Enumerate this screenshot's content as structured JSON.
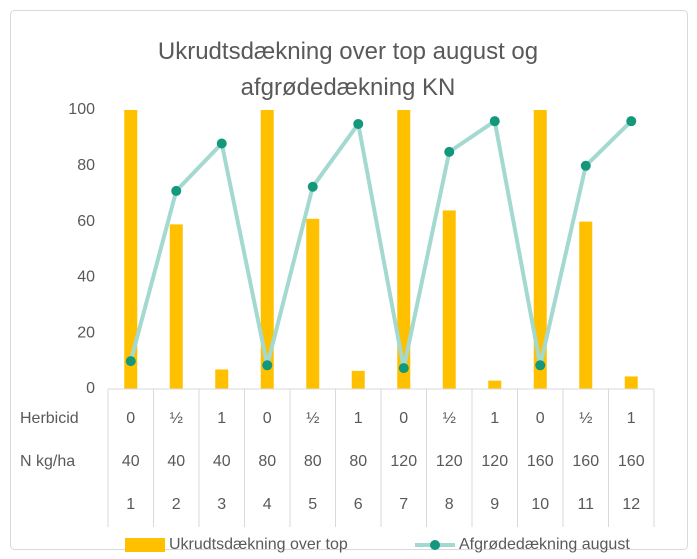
{
  "chart_data": {
    "type": "combo",
    "title": "Ukrudtsdækning over top august og afgrødedækning KN",
    "categories": [
      "1",
      "2",
      "3",
      "4",
      "5",
      "6",
      "7",
      "8",
      "9",
      "10",
      "11",
      "12"
    ],
    "category_levels": [
      {
        "name": "Herbicid",
        "labels": [
          "0",
          "½",
          "1",
          "0",
          "½",
          "1",
          "0",
          "½",
          "1",
          "0",
          "½",
          "1"
        ]
      },
      {
        "name": "N kg/ha",
        "labels": [
          "40",
          "40",
          "40",
          "80",
          "80",
          "80",
          "120",
          "120",
          "120",
          "160",
          "160",
          "160"
        ]
      }
    ],
    "series": [
      {
        "name": "Ukrudtsdækning over top",
        "type": "bar",
        "color": "#ffc000",
        "values": [
          100,
          59,
          7,
          100,
          61,
          6.5,
          100,
          64,
          3,
          100,
          60,
          4.5
        ]
      },
      {
        "name": "Afgrødedækning august",
        "type": "line",
        "color": "#a3d9d1",
        "marker_color": "#13987c",
        "values": [
          10,
          71,
          88,
          8.5,
          72.5,
          95,
          7.5,
          85,
          96,
          8.5,
          80,
          96
        ]
      }
    ],
    "ylim": [
      0,
      100
    ],
    "yticks": [
      0,
      20,
      40,
      60,
      80,
      100
    ],
    "grid": false,
    "legend": "bottom"
  }
}
